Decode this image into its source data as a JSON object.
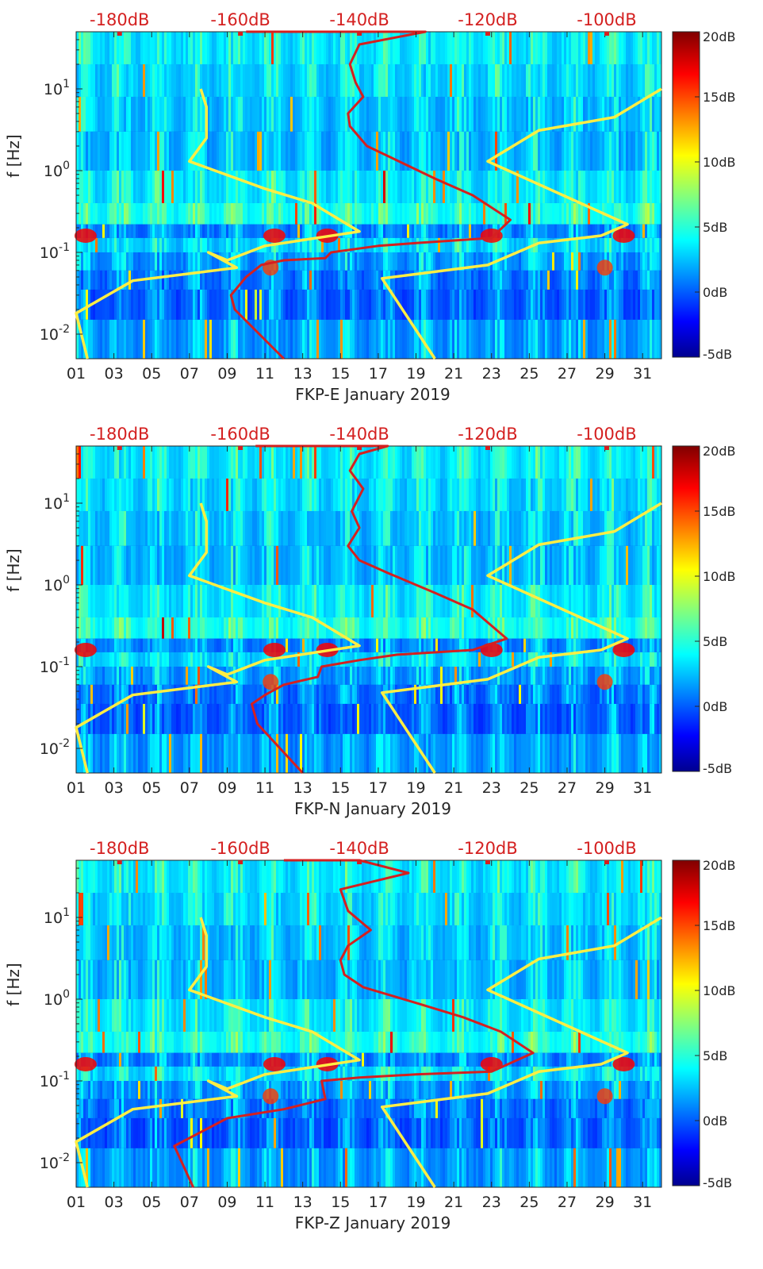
{
  "chart_data": [
    {
      "type": "heatmap",
      "title": "",
      "xlabel": "FKP-E January 2019",
      "ylabel": "f [Hz]",
      "y_scale": "log",
      "xlim": [
        1,
        32
      ],
      "ylim": [
        0.005,
        50
      ],
      "x_ticks": [
        "01",
        "03",
        "05",
        "07",
        "09",
        "11",
        "13",
        "15",
        "17",
        "19",
        "21",
        "23",
        "25",
        "27",
        "29",
        "31"
      ],
      "y_ticks": [
        {
          "value": 0.01,
          "base": "10",
          "exp": "-2"
        },
        {
          "value": 0.1,
          "base": "10",
          "exp": "-1"
        },
        {
          "value": 1,
          "base": "10",
          "exp": "0"
        },
        {
          "value": 10,
          "base": "10",
          "exp": "1"
        }
      ],
      "top_axis_labels": [
        "-180dB",
        "-160dB",
        "-140dB",
        "-120dB",
        "-100dB"
      ],
      "colorbar": {
        "labels": [
          "20dB",
          "15dB",
          "10dB",
          "5dB",
          "0dB",
          "-5dB"
        ],
        "range": [
          -5,
          20
        ],
        "colormap": "jet"
      },
      "reference_curves": {
        "color": "#ffee44",
        "low_model": [
          {
            "x": 7.6,
            "y": 10
          },
          {
            "x": 7.9,
            "y": 6
          },
          {
            "x": 7.9,
            "y": 2.5
          },
          {
            "x": 7.0,
            "y": 1.3
          },
          {
            "x": 11.0,
            "y": 0.6
          },
          {
            "x": 13.5,
            "y": 0.4
          },
          {
            "x": 16.0,
            "y": 0.18
          },
          {
            "x": 11.0,
            "y": 0.12
          },
          {
            "x": 9.0,
            "y": 0.08
          },
          {
            "x": 8.0,
            "y": 0.1
          },
          {
            "x": 9.5,
            "y": 0.065
          },
          {
            "x": 4.0,
            "y": 0.045
          },
          {
            "x": 1.0,
            "y": 0.018
          },
          {
            "x": 1.6,
            "y": 0.005
          }
        ],
        "high_model": [
          {
            "x": 32,
            "y": 10
          },
          {
            "x": 29.5,
            "y": 4.5
          },
          {
            "x": 25.5,
            "y": 3.1
          },
          {
            "x": 22.8,
            "y": 1.3
          },
          {
            "x": 30.2,
            "y": 0.22
          },
          {
            "x": 28.8,
            "y": 0.16
          },
          {
            "x": 25.5,
            "y": 0.13
          },
          {
            "x": 22.8,
            "y": 0.07
          },
          {
            "x": 17.2,
            "y": 0.048
          },
          {
            "x": 20,
            "y": 0.005
          }
        ]
      },
      "noise_curve": {
        "color": "#d42020",
        "points": [
          {
            "x": 10.0,
            "y": 50
          },
          {
            "x": 19.5,
            "y": 50
          },
          {
            "x": 16.0,
            "y": 35
          },
          {
            "x": 15.5,
            "y": 20
          },
          {
            "x": 15.8,
            "y": 12
          },
          {
            "x": 16.2,
            "y": 8
          },
          {
            "x": 15.4,
            "y": 5
          },
          {
            "x": 15.5,
            "y": 3.5
          },
          {
            "x": 16.4,
            "y": 2.0
          },
          {
            "x": 17.8,
            "y": 1.4
          },
          {
            "x": 20.0,
            "y": 0.8
          },
          {
            "x": 22.0,
            "y": 0.5
          },
          {
            "x": 24.0,
            "y": 0.25
          },
          {
            "x": 23.0,
            "y": 0.15
          },
          {
            "x": 19.0,
            "y": 0.13
          },
          {
            "x": 17.0,
            "y": 0.12
          },
          {
            "x": 14.5,
            "y": 0.1
          },
          {
            "x": 14.2,
            "y": 0.085
          },
          {
            "x": 12.0,
            "y": 0.08
          },
          {
            "x": 10.8,
            "y": 0.07
          },
          {
            "x": 10.0,
            "y": 0.05
          },
          {
            "x": 9.2,
            "y": 0.03
          },
          {
            "x": 9.4,
            "y": 0.02
          },
          {
            "x": 12.0,
            "y": 0.005
          }
        ]
      }
    },
    {
      "type": "heatmap",
      "title": "",
      "xlabel": "FKP-N January 2019",
      "ylabel": "f [Hz]",
      "y_scale": "log",
      "xlim": [
        1,
        32
      ],
      "ylim": [
        0.005,
        50
      ],
      "x_ticks": [
        "01",
        "03",
        "05",
        "07",
        "09",
        "11",
        "13",
        "15",
        "17",
        "19",
        "21",
        "23",
        "25",
        "27",
        "29",
        "31"
      ],
      "y_ticks": [
        {
          "value": 0.01,
          "base": "10",
          "exp": "-2"
        },
        {
          "value": 0.1,
          "base": "10",
          "exp": "-1"
        },
        {
          "value": 1,
          "base": "10",
          "exp": "0"
        },
        {
          "value": 10,
          "base": "10",
          "exp": "1"
        }
      ],
      "top_axis_labels": [
        "-180dB",
        "-160dB",
        "-140dB",
        "-120dB",
        "-100dB"
      ],
      "colorbar": {
        "labels": [
          "20dB",
          "15dB",
          "10dB",
          "5dB",
          "0dB",
          "-5dB"
        ],
        "range": [
          -5,
          20
        ],
        "colormap": "jet"
      },
      "reference_curves": {
        "color": "#ffee44",
        "low_model": [
          {
            "x": 7.6,
            "y": 10
          },
          {
            "x": 7.9,
            "y": 6
          },
          {
            "x": 7.9,
            "y": 2.5
          },
          {
            "x": 7.0,
            "y": 1.3
          },
          {
            "x": 11.0,
            "y": 0.6
          },
          {
            "x": 13.5,
            "y": 0.4
          },
          {
            "x": 16.0,
            "y": 0.18
          },
          {
            "x": 11.0,
            "y": 0.12
          },
          {
            "x": 9.0,
            "y": 0.08
          },
          {
            "x": 8.0,
            "y": 0.1
          },
          {
            "x": 9.5,
            "y": 0.065
          },
          {
            "x": 4.0,
            "y": 0.045
          },
          {
            "x": 1.0,
            "y": 0.018
          },
          {
            "x": 1.6,
            "y": 0.005
          }
        ],
        "high_model": [
          {
            "x": 32,
            "y": 10
          },
          {
            "x": 29.5,
            "y": 4.5
          },
          {
            "x": 25.5,
            "y": 3.1
          },
          {
            "x": 22.8,
            "y": 1.3
          },
          {
            "x": 30.2,
            "y": 0.22
          },
          {
            "x": 28.8,
            "y": 0.16
          },
          {
            "x": 25.5,
            "y": 0.13
          },
          {
            "x": 22.8,
            "y": 0.07
          },
          {
            "x": 17.2,
            "y": 0.048
          },
          {
            "x": 20,
            "y": 0.005
          }
        ]
      },
      "noise_curve": {
        "color": "#d42020",
        "points": [
          {
            "x": 10.5,
            "y": 50
          },
          {
            "x": 17.5,
            "y": 50
          },
          {
            "x": 16.0,
            "y": 40
          },
          {
            "x": 15.5,
            "y": 25
          },
          {
            "x": 16.2,
            "y": 15
          },
          {
            "x": 15.6,
            "y": 8
          },
          {
            "x": 16.0,
            "y": 5
          },
          {
            "x": 15.4,
            "y": 3.0
          },
          {
            "x": 16.0,
            "y": 2.0
          },
          {
            "x": 17.5,
            "y": 1.4
          },
          {
            "x": 20.0,
            "y": 0.8
          },
          {
            "x": 22.0,
            "y": 0.5
          },
          {
            "x": 23.8,
            "y": 0.22
          },
          {
            "x": 22.0,
            "y": 0.16
          },
          {
            "x": 18.0,
            "y": 0.14
          },
          {
            "x": 16.0,
            "y": 0.12
          },
          {
            "x": 14.0,
            "y": 0.1
          },
          {
            "x": 13.8,
            "y": 0.075
          },
          {
            "x": 12.0,
            "y": 0.06
          },
          {
            "x": 11.0,
            "y": 0.045
          },
          {
            "x": 10.3,
            "y": 0.035
          },
          {
            "x": 10.6,
            "y": 0.02
          },
          {
            "x": 13.0,
            "y": 0.005
          }
        ]
      }
    },
    {
      "type": "heatmap",
      "title": "",
      "xlabel": "FKP-Z January 2019",
      "ylabel": "f [Hz]",
      "y_scale": "log",
      "xlim": [
        1,
        32
      ],
      "ylim": [
        0.005,
        50
      ],
      "x_ticks": [
        "01",
        "03",
        "05",
        "07",
        "09",
        "11",
        "13",
        "15",
        "17",
        "19",
        "21",
        "23",
        "25",
        "27",
        "29",
        "31"
      ],
      "y_ticks": [
        {
          "value": 0.01,
          "base": "10",
          "exp": "-2"
        },
        {
          "value": 0.1,
          "base": "10",
          "exp": "-1"
        },
        {
          "value": 1,
          "base": "10",
          "exp": "0"
        },
        {
          "value": 10,
          "base": "10",
          "exp": "1"
        }
      ],
      "top_axis_labels": [
        "-180dB",
        "-160dB",
        "-140dB",
        "-120dB",
        "-100dB"
      ],
      "colorbar": {
        "labels": [
          "20dB",
          "15dB",
          "10dB",
          "5dB",
          "0dB",
          "-5dB"
        ],
        "range": [
          -5,
          20
        ],
        "colormap": "jet"
      },
      "reference_curves": {
        "color": "#ffee44",
        "low_model": [
          {
            "x": 7.6,
            "y": 10
          },
          {
            "x": 7.9,
            "y": 6
          },
          {
            "x": 7.9,
            "y": 2.5
          },
          {
            "x": 7.0,
            "y": 1.3
          },
          {
            "x": 11.0,
            "y": 0.6
          },
          {
            "x": 13.5,
            "y": 0.4
          },
          {
            "x": 16.0,
            "y": 0.18
          },
          {
            "x": 11.0,
            "y": 0.12
          },
          {
            "x": 9.0,
            "y": 0.08
          },
          {
            "x": 8.0,
            "y": 0.1
          },
          {
            "x": 9.5,
            "y": 0.065
          },
          {
            "x": 4.0,
            "y": 0.045
          },
          {
            "x": 1.0,
            "y": 0.018
          },
          {
            "x": 1.6,
            "y": 0.005
          }
        ],
        "high_model": [
          {
            "x": 32,
            "y": 10
          },
          {
            "x": 29.5,
            "y": 4.5
          },
          {
            "x": 25.5,
            "y": 3.1
          },
          {
            "x": 22.8,
            "y": 1.3
          },
          {
            "x": 30.2,
            "y": 0.22
          },
          {
            "x": 28.8,
            "y": 0.16
          },
          {
            "x": 25.5,
            "y": 0.13
          },
          {
            "x": 22.8,
            "y": 0.07
          },
          {
            "x": 17.2,
            "y": 0.048
          },
          {
            "x": 20,
            "y": 0.005
          }
        ]
      },
      "noise_curve": {
        "color": "#d42020",
        "points": [
          {
            "x": 12.0,
            "y": 50
          },
          {
            "x": 16.0,
            "y": 50
          },
          {
            "x": 18.6,
            "y": 35
          },
          {
            "x": 15.0,
            "y": 22
          },
          {
            "x": 15.4,
            "y": 12
          },
          {
            "x": 16.6,
            "y": 7
          },
          {
            "x": 15.4,
            "y": 4.5
          },
          {
            "x": 15.0,
            "y": 3.0
          },
          {
            "x": 15.2,
            "y": 2.0
          },
          {
            "x": 16.2,
            "y": 1.4
          },
          {
            "x": 19.0,
            "y": 0.9
          },
          {
            "x": 21.5,
            "y": 0.6
          },
          {
            "x": 23.5,
            "y": 0.4
          },
          {
            "x": 25.2,
            "y": 0.22
          },
          {
            "x": 23.0,
            "y": 0.13
          },
          {
            "x": 19.0,
            "y": 0.12
          },
          {
            "x": 16.0,
            "y": 0.11
          },
          {
            "x": 14.0,
            "y": 0.1
          },
          {
            "x": 14.2,
            "y": 0.06
          },
          {
            "x": 12.0,
            "y": 0.045
          },
          {
            "x": 9.0,
            "y": 0.035
          },
          {
            "x": 7.0,
            "y": 0.02
          },
          {
            "x": 6.2,
            "y": 0.016
          },
          {
            "x": 7.2,
            "y": 0.005
          }
        ]
      }
    }
  ]
}
